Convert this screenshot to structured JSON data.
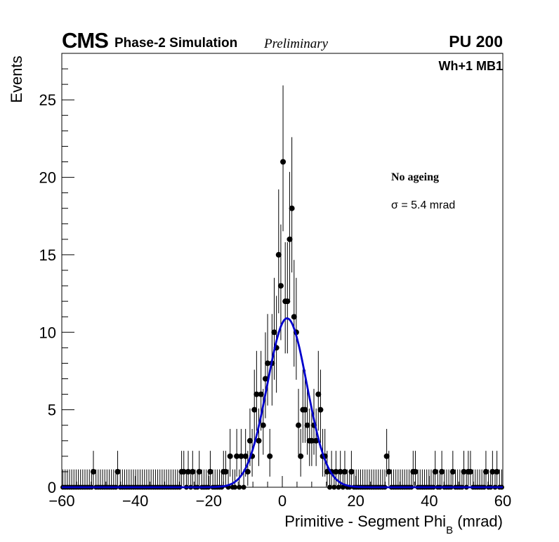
{
  "header": {
    "experiment": "CMS",
    "subtitle": "Phase-2 Simulation",
    "status": "Preliminary",
    "pileup": "PU 200",
    "region": "Wh+1 MB1"
  },
  "legend": {
    "condition": "No ageing",
    "sigma": "σ = 5.4 mrad"
  },
  "colors": {
    "fit": "#0000cc",
    "points": "#000000"
  },
  "chart_data": {
    "type": "scatter",
    "title": "",
    "xlabel": "Primitive - Segment Phi",
    "xlabel_sub": "B",
    "xlabel_unit": "(mrad)",
    "ylabel": "Events",
    "xlim": [
      -60,
      60
    ],
    "ylim": [
      0,
      28
    ],
    "xticks": [
      -60,
      -40,
      -20,
      0,
      20,
      40,
      60
    ],
    "yticks": [
      0,
      5,
      10,
      15,
      20,
      25
    ],
    "grid": false,
    "bin_width": 0.6,
    "series": [
      {
        "kind": "histogram points with sqrt(N) error bars",
        "points": [
          [
            -51.4,
            1
          ],
          [
            -44.8,
            1
          ],
          [
            -27.4,
            1
          ],
          [
            -26.8,
            1
          ],
          [
            -25.6,
            1
          ],
          [
            -24.4,
            1
          ],
          [
            -22.6,
            1
          ],
          [
            -19.6,
            1
          ],
          [
            -16.0,
            1
          ],
          [
            -15.4,
            1
          ],
          [
            -14.2,
            2
          ],
          [
            -12.4,
            2
          ],
          [
            -11.2,
            2
          ],
          [
            -10.0,
            2
          ],
          [
            -9.4,
            1
          ],
          [
            -8.8,
            3
          ],
          [
            -8.2,
            2
          ],
          [
            -7.6,
            5
          ],
          [
            -7.0,
            6
          ],
          [
            -6.4,
            3
          ],
          [
            -5.8,
            6
          ],
          [
            -5.2,
            4
          ],
          [
            -4.6,
            7
          ],
          [
            -4.0,
            8
          ],
          [
            -3.4,
            2
          ],
          [
            -2.8,
            8
          ],
          [
            -2.2,
            10
          ],
          [
            -1.6,
            9
          ],
          [
            -1.0,
            15
          ],
          [
            -0.4,
            13
          ],
          [
            0.2,
            21
          ],
          [
            0.8,
            12
          ],
          [
            1.4,
            12
          ],
          [
            2.0,
            16
          ],
          [
            2.6,
            18
          ],
          [
            3.2,
            11
          ],
          [
            3.8,
            10
          ],
          [
            4.4,
            4
          ],
          [
            5.0,
            2
          ],
          [
            5.6,
            5
          ],
          [
            6.2,
            5
          ],
          [
            6.8,
            4
          ],
          [
            7.4,
            3
          ],
          [
            8.0,
            3
          ],
          [
            8.6,
            4
          ],
          [
            9.2,
            3
          ],
          [
            9.8,
            6
          ],
          [
            10.4,
            5
          ],
          [
            11.0,
            2
          ],
          [
            11.6,
            2
          ],
          [
            12.2,
            1
          ],
          [
            13.4,
            1
          ],
          [
            14.6,
            1
          ],
          [
            15.8,
            1
          ],
          [
            17.0,
            1
          ],
          [
            18.8,
            1
          ],
          [
            28.4,
            2
          ],
          [
            29.0,
            1
          ],
          [
            35.6,
            1
          ],
          [
            36.2,
            1
          ],
          [
            41.6,
            1
          ],
          [
            43.4,
            1
          ],
          [
            46.4,
            1
          ],
          [
            49.4,
            1
          ],
          [
            50.6,
            1
          ],
          [
            51.2,
            1
          ],
          [
            55.4,
            1
          ],
          [
            57.2,
            1
          ],
          [
            58.4,
            1
          ]
        ]
      },
      {
        "name": "Gaussian fit",
        "kind": "gaussian",
        "amplitude": 10.9,
        "mean": 1.3,
        "sigma": 5.4
      }
    ]
  }
}
